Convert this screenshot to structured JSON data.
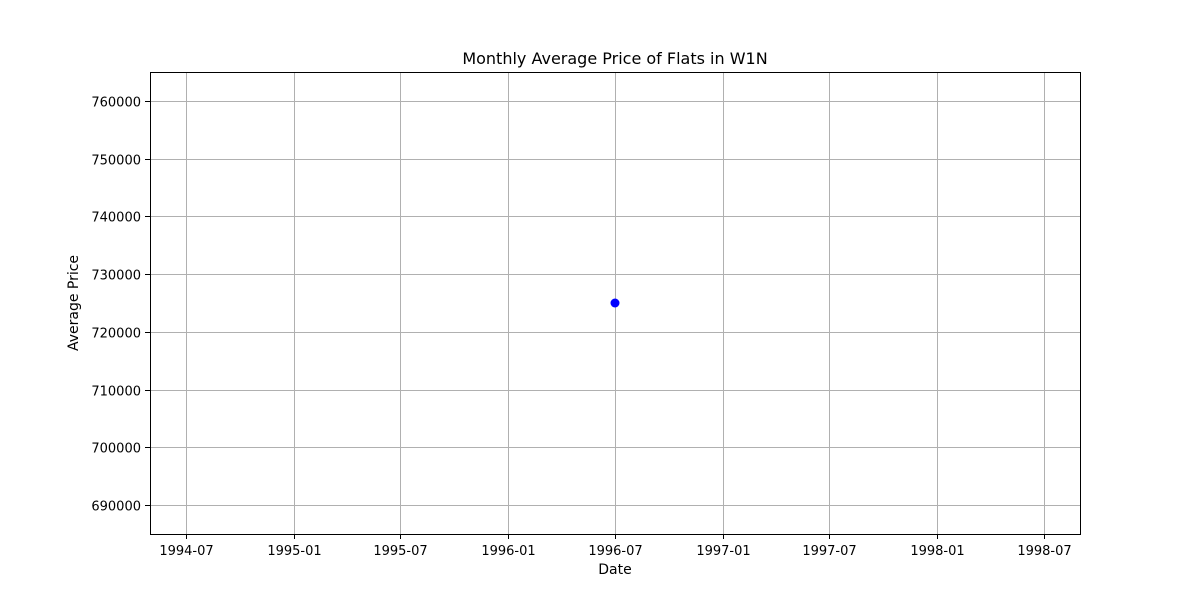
{
  "chart_data": {
    "type": "scatter",
    "title": "Monthly Average Price of Flats in W1N",
    "xlabel": "Date",
    "ylabel": "Average Price",
    "x_type": "date",
    "xlim": [
      "1994-05-01",
      "1998-09-01"
    ],
    "ylim": [
      685000,
      765000
    ],
    "x_ticks": [
      "1994-07",
      "1995-01",
      "1995-07",
      "1996-01",
      "1996-07",
      "1997-01",
      "1997-07",
      "1998-01",
      "1998-07"
    ],
    "y_ticks": [
      690000,
      700000,
      710000,
      720000,
      730000,
      740000,
      750000,
      760000
    ],
    "grid": true,
    "series": [
      {
        "color": "#0000ff",
        "points": [
          {
            "x": "1996-07-01",
            "y": 725000
          }
        ]
      }
    ]
  }
}
